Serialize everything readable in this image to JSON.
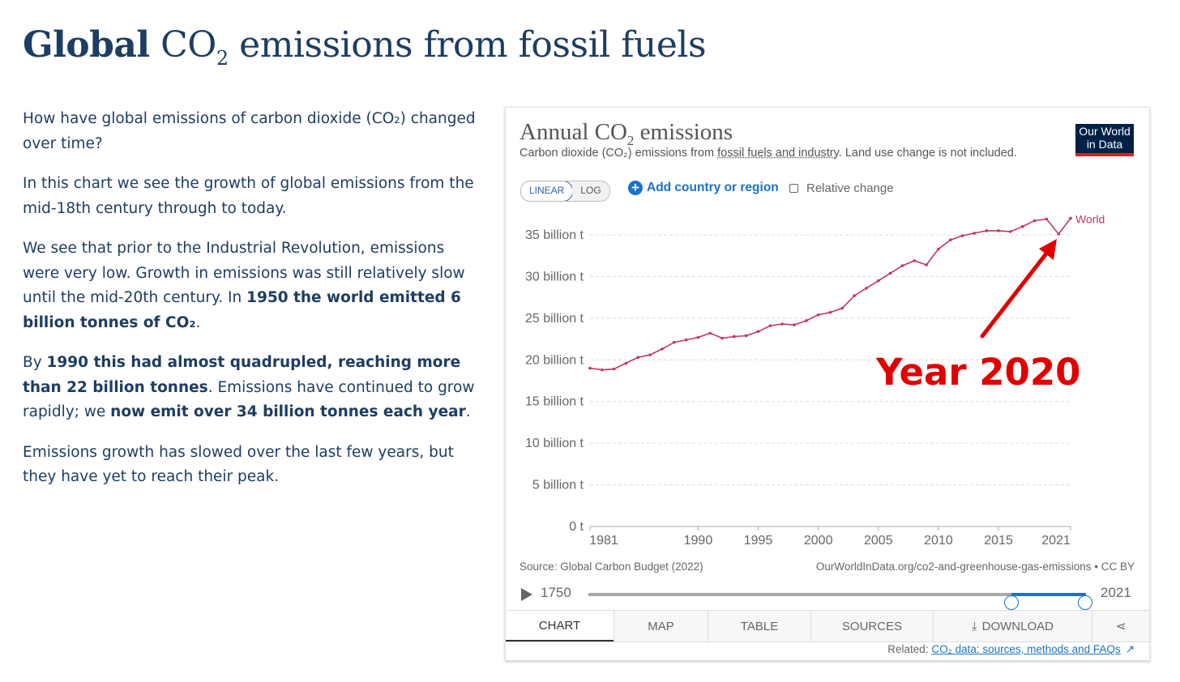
{
  "page": {
    "title_bold": "Global",
    "title_co": "CO",
    "title_sub": "2",
    "title_rest": " emissions from fossil fuels"
  },
  "article": {
    "p1": "How have global emissions of carbon dioxide (CO₂) changed over time?",
    "p2": "In this chart we see the growth of global emissions from the mid-18th century through to today.",
    "p3_a": "We see that prior to the Industrial Revolution, emissions were very low. Growth in emissions was still relatively slow until the mid-20th century. In ",
    "p3_b": "1950 the world emitted 6 billion tonnes of CO₂",
    "p3_c": ".",
    "p4_a": "By ",
    "p4_b": "1990 this had almost quadrupled, reaching more than 22 billion tonnes",
    "p4_c": ". Emissions have continued to grow rapidly; we ",
    "p4_d": "now emit over 34 billion tonnes each year",
    "p4_e": ".",
    "p5": "Emissions growth has slowed over the last few years, but they have yet to reach their peak."
  },
  "card": {
    "title_main": "Annual CO",
    "title_sub": "2",
    "title_rest": " emissions",
    "subtitle_a": "Carbon dioxide (CO₂) emissions from ",
    "subtitle_link": "fossil fuels and industry",
    "subtitle_b": ". Land use change is not included.",
    "logo_line1": "Our World",
    "logo_line2": "in Data",
    "toggle_linear": "LINEAR",
    "toggle_log": "LOG",
    "add_label": "Add country or region",
    "relative_label": "Relative change",
    "source": "Source: Global Carbon Budget (2022)",
    "origin": "OurWorldInData.org/co2-and-greenhouse-gas-emissions • CC BY",
    "timeline_start": "1750",
    "timeline_end": "2021",
    "tabs": [
      "CHART",
      "MAP",
      "TABLE",
      "SOURCES",
      "DOWNLOAD"
    ],
    "related_label": "Related: ",
    "related_link": "CO₂ data: sources, methods and FAQs"
  },
  "chart_data": {
    "type": "line",
    "title": "Annual CO₂ emissions",
    "xlabel": "",
    "ylabel": "",
    "xlim": [
      1981,
      2021
    ],
    "ylim": [
      0,
      35
    ],
    "xticks": [
      {
        "value": 1981,
        "label": "1981"
      },
      {
        "value": 1990,
        "label": "1990"
      },
      {
        "value": 1995,
        "label": "1995"
      },
      {
        "value": 2000,
        "label": "2000"
      },
      {
        "value": 2005,
        "label": "2005"
      },
      {
        "value": 2010,
        "label": "2010"
      },
      {
        "value": 2015,
        "label": "2015"
      },
      {
        "value": 2021,
        "label": "2021"
      }
    ],
    "yticks": [
      {
        "value": 0,
        "label": "0 t"
      },
      {
        "value": 5,
        "label": "5 billion t"
      },
      {
        "value": 10,
        "label": "10 billion t"
      },
      {
        "value": 15,
        "label": "15 billion t"
      },
      {
        "value": 20,
        "label": "20 billion t"
      },
      {
        "value": 25,
        "label": "25 billion t"
      },
      {
        "value": 30,
        "label": "30 billion t"
      },
      {
        "value": 35,
        "label": "35 billion t"
      }
    ],
    "grid": true,
    "color": "#c0395f",
    "series": [
      {
        "name": "World",
        "x": [
          1981,
          1982,
          1983,
          1984,
          1985,
          1986,
          1987,
          1988,
          1989,
          1990,
          1991,
          1992,
          1993,
          1994,
          1995,
          1996,
          1997,
          1998,
          1999,
          2000,
          2001,
          2002,
          2003,
          2004,
          2005,
          2006,
          2007,
          2008,
          2009,
          2010,
          2011,
          2012,
          2013,
          2014,
          2015,
          2016,
          2017,
          2018,
          2019,
          2020,
          2021
        ],
        "y": [
          19.0,
          18.8,
          18.9,
          19.6,
          20.3,
          20.6,
          21.3,
          22.1,
          22.4,
          22.7,
          23.2,
          22.6,
          22.8,
          22.9,
          23.4,
          24.1,
          24.3,
          24.2,
          24.7,
          25.4,
          25.7,
          26.2,
          27.7,
          28.6,
          29.5,
          30.4,
          31.3,
          31.9,
          31.4,
          33.3,
          34.4,
          34.9,
          35.2,
          35.5,
          35.5,
          35.4,
          36.0,
          36.7,
          36.9,
          35.1,
          37.0
        ]
      }
    ],
    "annotation": "Year 2020"
  }
}
